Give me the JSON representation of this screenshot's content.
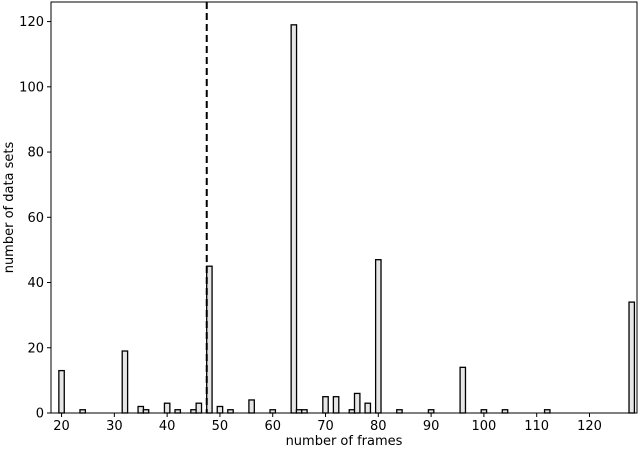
{
  "chart_data": {
    "type": "bar",
    "xlabel": "number of frames",
    "ylabel": "number of data sets",
    "xlim": [
      18,
      129
    ],
    "ylim": [
      0,
      126
    ],
    "xticks": [
      20,
      30,
      40,
      50,
      60,
      70,
      80,
      90,
      100,
      110,
      120
    ],
    "yticks": [
      0,
      20,
      40,
      60,
      80,
      100,
      120
    ],
    "bars": [
      {
        "x": 20,
        "y": 13
      },
      {
        "x": 24,
        "y": 1
      },
      {
        "x": 32,
        "y": 19
      },
      {
        "x": 35,
        "y": 2
      },
      {
        "x": 36,
        "y": 1
      },
      {
        "x": 40,
        "y": 3
      },
      {
        "x": 42,
        "y": 1
      },
      {
        "x": 45,
        "y": 1
      },
      {
        "x": 46,
        "y": 3
      },
      {
        "x": 48,
        "y": 45
      },
      {
        "x": 50,
        "y": 2
      },
      {
        "x": 52,
        "y": 1
      },
      {
        "x": 56,
        "y": 4
      },
      {
        "x": 60,
        "y": 1
      },
      {
        "x": 64,
        "y": 119
      },
      {
        "x": 65,
        "y": 1
      },
      {
        "x": 66,
        "y": 1
      },
      {
        "x": 70,
        "y": 5
      },
      {
        "x": 72,
        "y": 5
      },
      {
        "x": 75,
        "y": 1
      },
      {
        "x": 76,
        "y": 6
      },
      {
        "x": 78,
        "y": 3
      },
      {
        "x": 80,
        "y": 47
      },
      {
        "x": 84,
        "y": 1
      },
      {
        "x": 90,
        "y": 1
      },
      {
        "x": 96,
        "y": 14
      },
      {
        "x": 100,
        "y": 1
      },
      {
        "x": 104,
        "y": 1
      },
      {
        "x": 112,
        "y": 1
      },
      {
        "x": 128,
        "y": 34
      }
    ],
    "bar_fill": "#e6e6e6",
    "bar_edge": "#000000",
    "reference_line": {
      "x": 47.5,
      "style": "dashed",
      "color": "#000000"
    },
    "grid": false,
    "legend": "none"
  }
}
